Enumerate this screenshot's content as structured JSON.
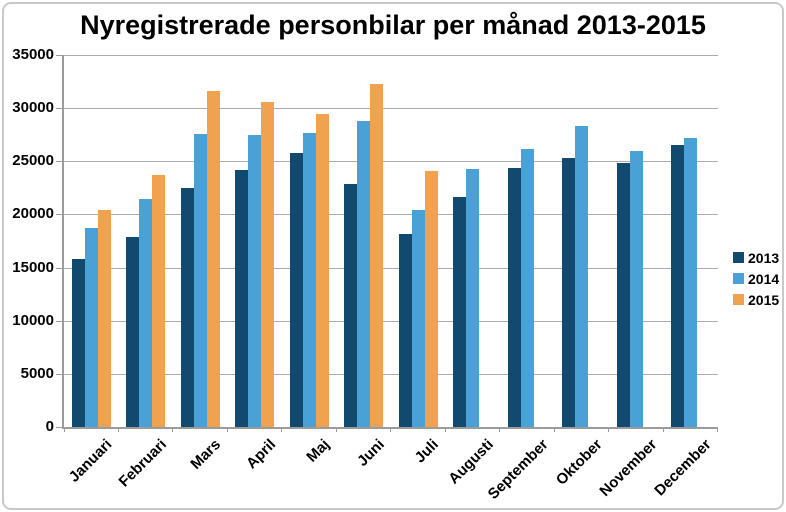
{
  "title": "Nyregistrerade personbilar per månad 2013-2015",
  "chart_data": {
    "type": "bar",
    "title": "Nyregistrerade personbilar per månad 2013-2015",
    "categories": [
      "Januari",
      "Februari",
      "Mars",
      "April",
      "Maj",
      "Juni",
      "Juli",
      "Augusti",
      "September",
      "Oktober",
      "November",
      "December"
    ],
    "series": [
      {
        "name": "2013",
        "color": "#12496E",
        "values": [
          15800,
          17900,
          22500,
          24150,
          25800,
          22900,
          18200,
          21650,
          24400,
          25300,
          24800,
          26500
        ]
      },
      {
        "name": "2014",
        "color": "#4AA1D5",
        "values": [
          18700,
          21500,
          27600,
          27500,
          27650,
          28800,
          20450,
          24300,
          26150,
          28300,
          26000,
          27150
        ]
      },
      {
        "name": "2015",
        "color": "#F0A24F",
        "values": [
          20400,
          23700,
          31600,
          30550,
          29450,
          32300,
          24100,
          null,
          null,
          null,
          null,
          null
        ]
      }
    ],
    "xlabel": "",
    "ylabel": "",
    "ylim": [
      0,
      35000
    ],
    "ytick_step": 5000,
    "ytick_labels": [
      "0",
      "5000",
      "10000",
      "15000",
      "20000",
      "25000",
      "30000",
      "35000"
    ],
    "grid": true,
    "legend_position": "right",
    "bar_orientation": "vertical"
  },
  "colors": {
    "background": "#FFFFFF",
    "gridline": "#ABABAB",
    "axis": "#9B9B9B",
    "frame_border": "#C9C9C9",
    "text": "#000000"
  }
}
